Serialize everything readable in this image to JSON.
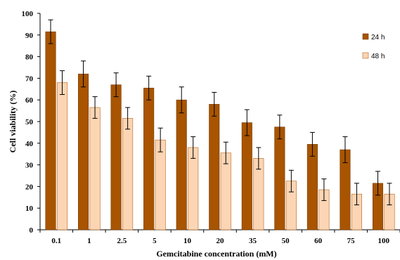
{
  "chart_data": {
    "type": "bar",
    "xlabel": "Gemcitabine concentration (mM)",
    "ylabel": "Cell viability (%)",
    "ylim": [
      0,
      100
    ],
    "yticks": [
      0,
      10,
      20,
      30,
      40,
      50,
      60,
      70,
      80,
      90,
      100
    ],
    "categories": [
      "0.1",
      "1",
      "2.5",
      "5",
      "10",
      "20",
      "35",
      "50",
      "60",
      "75",
      "100"
    ],
    "series": [
      {
        "name": "24 h",
        "color": "#a85400",
        "values": [
          91.5,
          72,
          67,
          65.5,
          60,
          58,
          49.5,
          47.5,
          39.5,
          37,
          21.5
        ],
        "errors": [
          5.5,
          6,
          5.5,
          5.5,
          6,
          5.5,
          6,
          5.5,
          5.5,
          6,
          5.5
        ]
      },
      {
        "name": "48 h",
        "color": "#fcd5b4",
        "values": [
          68,
          56.5,
          51.5,
          41.5,
          38,
          35.5,
          33,
          22.5,
          18.5,
          16.5,
          16.5
        ],
        "errors": [
          5.5,
          5,
          5,
          5.5,
          5,
          5,
          5,
          5,
          5,
          5,
          5
        ]
      }
    ],
    "legend_position": "top-right",
    "grid": false
  }
}
